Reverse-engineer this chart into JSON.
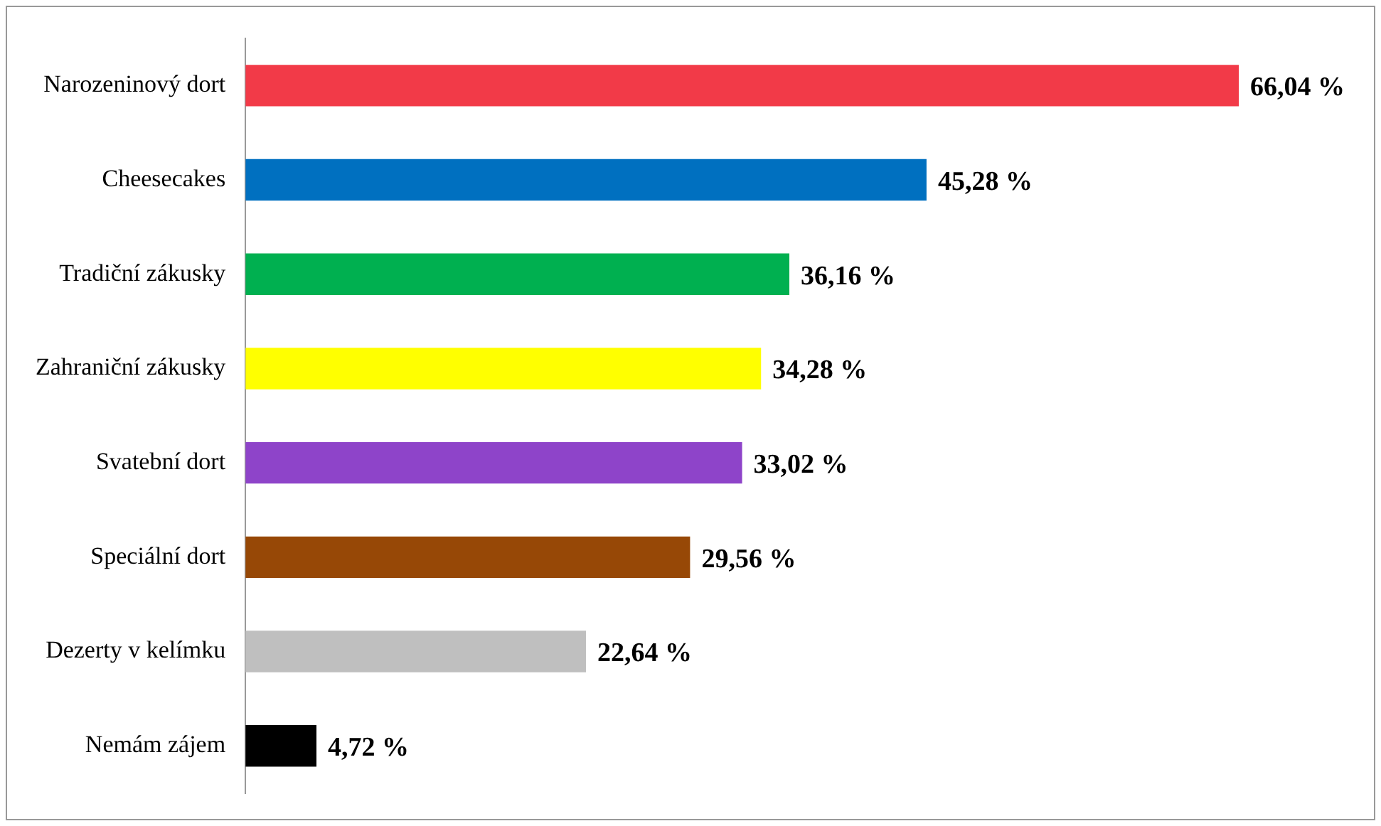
{
  "chart_data": {
    "type": "bar",
    "orientation": "horizontal",
    "categories": [
      "Narozeninový dort",
      "Cheesecakes",
      "Tradiční zákusky",
      "Zahraniční zákusky",
      "Svatební dort",
      "Speciální dort",
      "Dezerty v kelímku",
      "Nemám zájem"
    ],
    "values": [
      66.04,
      45.28,
      36.16,
      34.28,
      33.02,
      29.56,
      22.64,
      4.72
    ],
    "value_labels": [
      "66,04 %",
      "45,28 %",
      "36,16 %",
      "34,28 %",
      "33,02 %",
      "29,56 %",
      "22,64 %",
      "4,72 %"
    ],
    "colors": [
      "#f23a48",
      "#0070c0",
      "#00b050",
      "#ffff00",
      "#8e44c9",
      "#974806",
      "#bfbfbf",
      "#000000"
    ],
    "tick_labels": "y",
    "grid": false,
    "legend": false
  }
}
